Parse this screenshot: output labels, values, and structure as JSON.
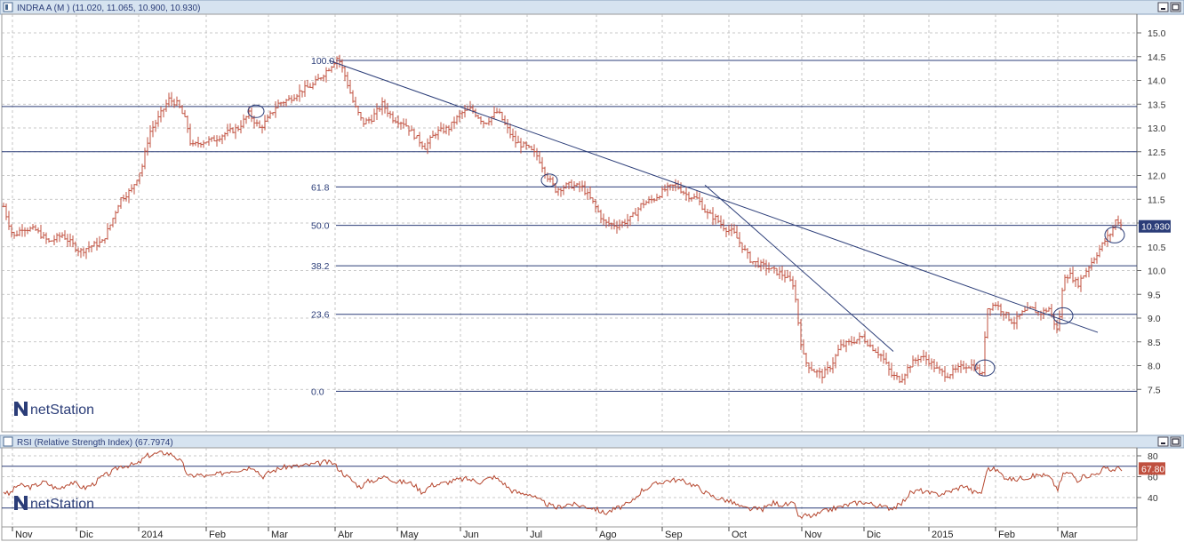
{
  "price_panel": {
    "title": "INDRA A (M ) (11.020, 11.065, 10.900, 10.930)",
    "last_price": "10.930",
    "watermark": "netStation"
  },
  "rsi_panel": {
    "title": "RSI (Relative Strength Index) (67.7974)",
    "last_value": "67.80",
    "watermark": "netStation"
  },
  "colors": {
    "bars": "#c0503f",
    "lines": "#2b3d78",
    "rsi": "#b5462e",
    "grid": "#b8b8b8",
    "header": "#d6e3f0",
    "badge": "#2b3d78",
    "rsi_badge": "#c0503f"
  },
  "chart_data": [
    {
      "type": "ohlc",
      "yticks": [
        "15.0",
        "14.5",
        "14.0",
        "13.5",
        "13.0",
        "12.5",
        "12.0",
        "11.5",
        "11.0",
        "10.5",
        "10.0",
        "9.5",
        "9.0",
        "8.5",
        "8.0",
        "7.5"
      ],
      "ylim": [
        7.0,
        15.3
      ],
      "xticks": [
        "Nov",
        "Dic",
        "2014",
        "Feb",
        "Mar",
        "Abr",
        "May",
        "Jun",
        "Jul",
        "Ago",
        "Sep",
        "Oct",
        "Nov",
        "Dic",
        "2015",
        "Feb",
        "Mar"
      ],
      "fibonacci_levels": [
        {
          "label": "100.0",
          "value": 14.42
        },
        {
          "label": "61.8",
          "value": 11.76
        },
        {
          "label": "50.0",
          "value": 10.95
        },
        {
          "label": "38.2",
          "value": 10.1
        },
        {
          "label": "23.6",
          "value": 9.08
        },
        {
          "label": "0.0",
          "value": 7.46
        }
      ],
      "extra_levels": [
        13.45,
        12.5
      ],
      "close_path": [
        [
          0,
          11.6
        ],
        [
          8,
          11.1
        ],
        [
          15,
          10.7
        ],
        [
          25,
          10.9
        ],
        [
          40,
          10.85
        ],
        [
          55,
          10.6
        ],
        [
          70,
          10.75
        ],
        [
          90,
          10.4
        ],
        [
          100,
          10.5
        ],
        [
          115,
          10.6
        ],
        [
          125,
          11.0
        ],
        [
          135,
          11.5
        ],
        [
          148,
          11.7
        ],
        [
          160,
          12.2
        ],
        [
          168,
          12.9
        ],
        [
          178,
          13.2
        ],
        [
          190,
          13.6
        ],
        [
          200,
          13.5
        ],
        [
          210,
          13.1
        ],
        [
          215,
          12.6
        ],
        [
          225,
          12.7
        ],
        [
          240,
          12.75
        ],
        [
          255,
          12.9
        ],
        [
          268,
          13.0
        ],
        [
          280,
          13.3
        ],
        [
          292,
          13.0
        ],
        [
          300,
          13.15
        ],
        [
          312,
          13.5
        ],
        [
          325,
          13.6
        ],
        [
          340,
          13.8
        ],
        [
          352,
          13.9
        ],
        [
          362,
          14.1
        ],
        [
          372,
          14.3
        ],
        [
          380,
          14.5
        ],
        [
          388,
          14.1
        ],
        [
          398,
          13.5
        ],
        [
          408,
          13.1
        ],
        [
          418,
          13.2
        ],
        [
          430,
          13.5
        ],
        [
          442,
          13.2
        ],
        [
          455,
          13.1
        ],
        [
          468,
          12.8
        ],
        [
          478,
          12.6
        ],
        [
          490,
          12.9
        ],
        [
          505,
          13.0
        ],
        [
          518,
          13.3
        ],
        [
          530,
          13.4
        ],
        [
          545,
          13.1
        ],
        [
          560,
          13.35
        ],
        [
          570,
          13.0
        ],
        [
          580,
          12.7
        ],
        [
          592,
          12.6
        ],
        [
          605,
          12.4
        ],
        [
          615,
          12.0
        ],
        [
          625,
          11.7
        ],
        [
          640,
          11.8
        ],
        [
          655,
          11.75
        ],
        [
          668,
          11.4
        ],
        [
          680,
          11.0
        ],
        [
          695,
          10.95
        ],
        [
          710,
          11.1
        ],
        [
          722,
          11.4
        ],
        [
          735,
          11.5
        ],
        [
          748,
          11.7
        ],
        [
          760,
          11.8
        ],
        [
          772,
          11.6
        ],
        [
          785,
          11.5
        ],
        [
          795,
          11.2
        ],
        [
          805,
          11.1
        ],
        [
          815,
          10.9
        ],
        [
          825,
          10.8
        ],
        [
          835,
          10.5
        ],
        [
          845,
          10.2
        ],
        [
          858,
          10.1
        ],
        [
          870,
          10.0
        ],
        [
          882,
          9.9
        ],
        [
          893,
          9.7
        ],
        [
          900,
          8.6
        ],
        [
          905,
          8.1
        ],
        [
          915,
          7.9
        ],
        [
          925,
          7.8
        ],
        [
          935,
          8.0
        ],
        [
          945,
          8.4
        ],
        [
          958,
          8.5
        ],
        [
          970,
          8.6
        ],
        [
          980,
          8.4
        ],
        [
          992,
          8.2
        ],
        [
          1003,
          7.8
        ],
        [
          1013,
          7.7
        ],
        [
          1023,
          8.0
        ],
        [
          1035,
          8.2
        ],
        [
          1045,
          8.1
        ],
        [
          1055,
          7.9
        ],
        [
          1065,
          7.8
        ],
        [
          1075,
          7.9
        ],
        [
          1085,
          8.0
        ],
        [
          1095,
          8.0
        ],
        [
          1105,
          7.8
        ],
        [
          1110,
          9.2
        ],
        [
          1120,
          9.3
        ],
        [
          1130,
          9.1
        ],
        [
          1140,
          8.9
        ],
        [
          1150,
          9.1
        ],
        [
          1160,
          9.2
        ],
        [
          1170,
          9.1
        ],
        [
          1180,
          9.2
        ],
        [
          1190,
          8.7
        ],
        [
          1197,
          9.9
        ],
        [
          1205,
          9.9
        ],
        [
          1212,
          9.7
        ],
        [
          1222,
          10.0
        ],
        [
          1232,
          10.3
        ],
        [
          1242,
          10.6
        ],
        [
          1250,
          10.8
        ],
        [
          1256,
          11.1
        ],
        [
          1262,
          10.93
        ]
      ],
      "trendlines": [
        {
          "from": [
            370,
            14.42
          ],
          "to": [
            1235,
            8.7
          ]
        },
        {
          "from": [
            793,
            11.8
          ],
          "to": [
            1005,
            8.3
          ]
        }
      ],
      "ellipses": [
        {
          "x": 288,
          "y": 13.35
        },
        {
          "x": 618,
          "y": 11.9
        },
        {
          "x": 1108,
          "y": 7.95
        },
        {
          "x": 1196,
          "y": 9.05
        },
        {
          "x": 1254,
          "y": 10.75
        }
      ]
    },
    {
      "type": "line",
      "name": "RSI",
      "yticks": [
        "80",
        "60",
        "40"
      ],
      "ylim": [
        15,
        88
      ],
      "reference_levels": [
        70,
        30
      ],
      "points": [
        [
          0,
          48
        ],
        [
          10,
          43
        ],
        [
          20,
          52
        ],
        [
          35,
          50
        ],
        [
          50,
          55
        ],
        [
          65,
          48
        ],
        [
          80,
          55
        ],
        [
          95,
          49
        ],
        [
          105,
          53
        ],
        [
          115,
          60
        ],
        [
          125,
          64
        ],
        [
          135,
          70
        ],
        [
          145,
          71
        ],
        [
          155,
          72
        ],
        [
          165,
          80
        ],
        [
          175,
          82
        ],
        [
          185,
          83
        ],
        [
          195,
          81
        ],
        [
          205,
          73
        ],
        [
          212,
          60
        ],
        [
          222,
          62
        ],
        [
          235,
          60
        ],
        [
          248,
          63
        ],
        [
          260,
          66
        ],
        [
          272,
          67
        ],
        [
          285,
          70
        ],
        [
          295,
          60
        ],
        [
          305,
          65
        ],
        [
          315,
          68
        ],
        [
          325,
          70
        ],
        [
          335,
          70
        ],
        [
          345,
          71
        ],
        [
          355,
          72
        ],
        [
          365,
          74
        ],
        [
          375,
          73
        ],
        [
          385,
          64
        ],
        [
          395,
          57
        ],
        [
          405,
          50
        ],
        [
          415,
          56
        ],
        [
          425,
          57
        ],
        [
          435,
          61
        ],
        [
          445,
          55
        ],
        [
          455,
          55
        ],
        [
          465,
          53
        ],
        [
          475,
          45
        ],
        [
          485,
          52
        ],
        [
          495,
          53
        ],
        [
          505,
          55
        ],
        [
          515,
          57
        ],
        [
          525,
          58
        ],
        [
          540,
          55
        ],
        [
          555,
          60
        ],
        [
          565,
          55
        ],
        [
          575,
          47
        ],
        [
          585,
          44
        ],
        [
          595,
          44
        ],
        [
          605,
          38
        ],
        [
          615,
          34
        ],
        [
          625,
          30
        ],
        [
          640,
          34
        ],
        [
          655,
          32
        ],
        [
          668,
          30
        ],
        [
          680,
          25
        ],
        [
          695,
          30
        ],
        [
          710,
          35
        ],
        [
          722,
          47
        ],
        [
          735,
          52
        ],
        [
          748,
          56
        ],
        [
          760,
          57
        ],
        [
          772,
          55
        ],
        [
          785,
          50
        ],
        [
          795,
          44
        ],
        [
          805,
          40
        ],
        [
          815,
          38
        ],
        [
          825,
          35
        ],
        [
          835,
          30
        ],
        [
          845,
          29
        ],
        [
          858,
          29
        ],
        [
          870,
          35
        ],
        [
          882,
          33
        ],
        [
          893,
          34
        ],
        [
          900,
          20
        ],
        [
          905,
          23
        ],
        [
          915,
          22
        ],
        [
          925,
          26
        ],
        [
          935,
          29
        ],
        [
          945,
          31
        ],
        [
          958,
          34
        ],
        [
          970,
          36
        ],
        [
          980,
          34
        ],
        [
          992,
          31
        ],
        [
          1003,
          30
        ],
        [
          1013,
          33
        ],
        [
          1023,
          44
        ],
        [
          1035,
          47
        ],
        [
          1045,
          44
        ],
        [
          1055,
          43
        ],
        [
          1065,
          45
        ],
        [
          1075,
          48
        ],
        [
          1085,
          52
        ],
        [
          1095,
          45
        ],
        [
          1105,
          45
        ],
        [
          1110,
          67
        ],
        [
          1120,
          67
        ],
        [
          1130,
          60
        ],
        [
          1140,
          57
        ],
        [
          1150,
          59
        ],
        [
          1160,
          60
        ],
        [
          1170,
          62
        ],
        [
          1180,
          60
        ],
        [
          1190,
          48
        ],
        [
          1197,
          64
        ],
        [
          1205,
          63
        ],
        [
          1212,
          57
        ],
        [
          1222,
          61
        ],
        [
          1232,
          62
        ],
        [
          1242,
          68
        ],
        [
          1250,
          66
        ],
        [
          1256,
          68
        ],
        [
          1262,
          67.8
        ]
      ]
    }
  ]
}
